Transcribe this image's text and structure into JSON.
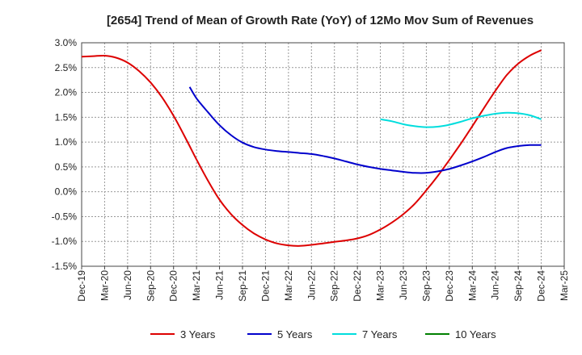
{
  "chart_data": {
    "type": "line",
    "title": "[2654]  Trend of Mean of Growth Rate (YoY) of 12Mo Mov Sum of Revenues",
    "xlabel": "",
    "ylabel": "",
    "y_tick_labels": [
      "3.0%",
      "2.5%",
      "2.0%",
      "1.5%",
      "1.0%",
      "0.5%",
      "0.0%",
      "-0.5%",
      "-1.0%",
      "-1.5%"
    ],
    "y_tick_values": [
      3.0,
      2.5,
      2.0,
      1.5,
      1.0,
      0.5,
      0.0,
      -0.5,
      -1.0,
      -1.5
    ],
    "ylim": [
      -1.5,
      3.0
    ],
    "x_tick_labels": [
      "Dec-19",
      "Mar-20",
      "Jun-20",
      "Sep-20",
      "Dec-20",
      "Mar-21",
      "Jun-21",
      "Sep-21",
      "Dec-21",
      "Mar-22",
      "Jun-22",
      "Sep-22",
      "Dec-22",
      "Mar-23",
      "Jun-23",
      "Sep-23",
      "Dec-23",
      "Mar-24",
      "Jun-24",
      "Sep-24",
      "Dec-24",
      "Mar-25"
    ],
    "xlim": [
      0,
      21
    ],
    "grid": true,
    "legend_position": "bottom",
    "series": [
      {
        "name": "3 Years",
        "color": "#dd0000",
        "points": [
          [
            0,
            2.72
          ],
          [
            0.5,
            2.73
          ],
          [
            1,
            2.74
          ],
          [
            1.5,
            2.7
          ],
          [
            2,
            2.6
          ],
          [
            2.5,
            2.43
          ],
          [
            3,
            2.2
          ],
          [
            3.5,
            1.9
          ],
          [
            4,
            1.53
          ],
          [
            4.5,
            1.1
          ],
          [
            5,
            0.65
          ],
          [
            5.5,
            0.22
          ],
          [
            6,
            -0.16
          ],
          [
            6.5,
            -0.45
          ],
          [
            7,
            -0.67
          ],
          [
            7.5,
            -0.84
          ],
          [
            8,
            -0.96
          ],
          [
            8.5,
            -1.04
          ],
          [
            9,
            -1.08
          ],
          [
            9.5,
            -1.09
          ],
          [
            10,
            -1.07
          ],
          [
            10.5,
            -1.04
          ],
          [
            11,
            -1.01
          ],
          [
            11.5,
            -0.98
          ],
          [
            12,
            -0.94
          ],
          [
            12.5,
            -0.87
          ],
          [
            13,
            -0.76
          ],
          [
            13.5,
            -0.62
          ],
          [
            14,
            -0.45
          ],
          [
            14.5,
            -0.24
          ],
          [
            15,
            0.03
          ],
          [
            15.5,
            0.32
          ],
          [
            16,
            0.64
          ],
          [
            16.5,
            0.97
          ],
          [
            17,
            1.32
          ],
          [
            17.5,
            1.68
          ],
          [
            18,
            2.03
          ],
          [
            18.5,
            2.35
          ],
          [
            19,
            2.58
          ],
          [
            19.5,
            2.74
          ],
          [
            20,
            2.85
          ]
        ]
      },
      {
        "name": "5 Years",
        "color": "#0000cc",
        "points": [
          [
            4.7,
            2.11
          ],
          [
            5,
            1.88
          ],
          [
            5.5,
            1.6
          ],
          [
            6,
            1.34
          ],
          [
            6.5,
            1.14
          ],
          [
            7,
            0.99
          ],
          [
            7.5,
            0.9
          ],
          [
            8,
            0.85
          ],
          [
            8.5,
            0.82
          ],
          [
            9,
            0.8
          ],
          [
            9.5,
            0.78
          ],
          [
            10,
            0.76
          ],
          [
            10.5,
            0.72
          ],
          [
            11,
            0.67
          ],
          [
            11.5,
            0.61
          ],
          [
            12,
            0.55
          ],
          [
            12.5,
            0.5
          ],
          [
            13,
            0.46
          ],
          [
            13.5,
            0.43
          ],
          [
            14,
            0.4
          ],
          [
            14.5,
            0.38
          ],
          [
            15,
            0.38
          ],
          [
            15.5,
            0.41
          ],
          [
            16,
            0.46
          ],
          [
            16.5,
            0.53
          ],
          [
            17,
            0.61
          ],
          [
            17.5,
            0.7
          ],
          [
            18,
            0.8
          ],
          [
            18.5,
            0.88
          ],
          [
            19,
            0.92
          ],
          [
            19.5,
            0.94
          ],
          [
            20,
            0.94
          ]
        ]
      },
      {
        "name": "7 Years",
        "color": "#00dddd",
        "points": [
          [
            13,
            1.46
          ],
          [
            13.5,
            1.42
          ],
          [
            14,
            1.36
          ],
          [
            14.5,
            1.32
          ],
          [
            15,
            1.3
          ],
          [
            15.5,
            1.31
          ],
          [
            16,
            1.35
          ],
          [
            16.5,
            1.41
          ],
          [
            17,
            1.48
          ],
          [
            17.5,
            1.53
          ],
          [
            18,
            1.57
          ],
          [
            18.5,
            1.59
          ],
          [
            19,
            1.58
          ],
          [
            19.5,
            1.54
          ],
          [
            20,
            1.46
          ]
        ]
      },
      {
        "name": "10 Years",
        "color": "#008000",
        "points": []
      }
    ]
  }
}
